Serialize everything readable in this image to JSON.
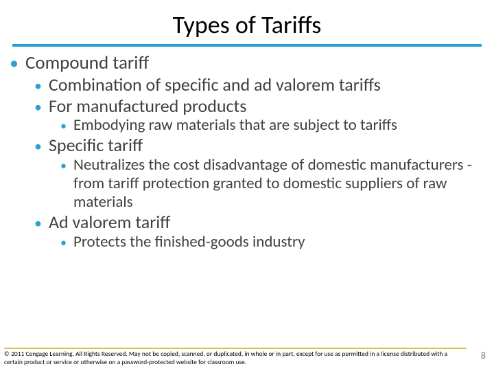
{
  "colors": {
    "accent": "#2aa2cf",
    "footer_rule": "#e6b84f",
    "body_text": "#404040",
    "title_text": "#000000",
    "background": "#ffffff",
    "pagenum": "#7a7a7a"
  },
  "typography": {
    "title_fontsize": 36,
    "l1_fontsize": 27,
    "l2_fontsize": 26,
    "l3_fontsize": 23,
    "footer_fontsize": 9.5,
    "pagenum_fontsize": 14,
    "font_family": "Calibri"
  },
  "title": "Types of Tariffs",
  "bullets": {
    "l1_0": "Compound tariff",
    "l2_0": "Combination of specific and ad valorem tariffs",
    "l2_1": "For manufactured products",
    "l3_0": "Embodying raw materials that are subject to tariffs",
    "l2_2": "Specific tariff",
    "l3_1": "Neutralizes the cost disadvantage of domestic manufacturers - from tariff protection granted to domestic suppliers of raw materials",
    "l2_3": "Ad valorem tariff",
    "l3_2": "Protects the finished-goods industry"
  },
  "footer": "© 2011 Cengage Learning. All Rights Reserved. May not be copied, scanned, or duplicated, in whole or in part, except for use as permitted in a license distributed with a certain product or service or otherwise on a password-protected website for classroom use.",
  "page_number": "8"
}
